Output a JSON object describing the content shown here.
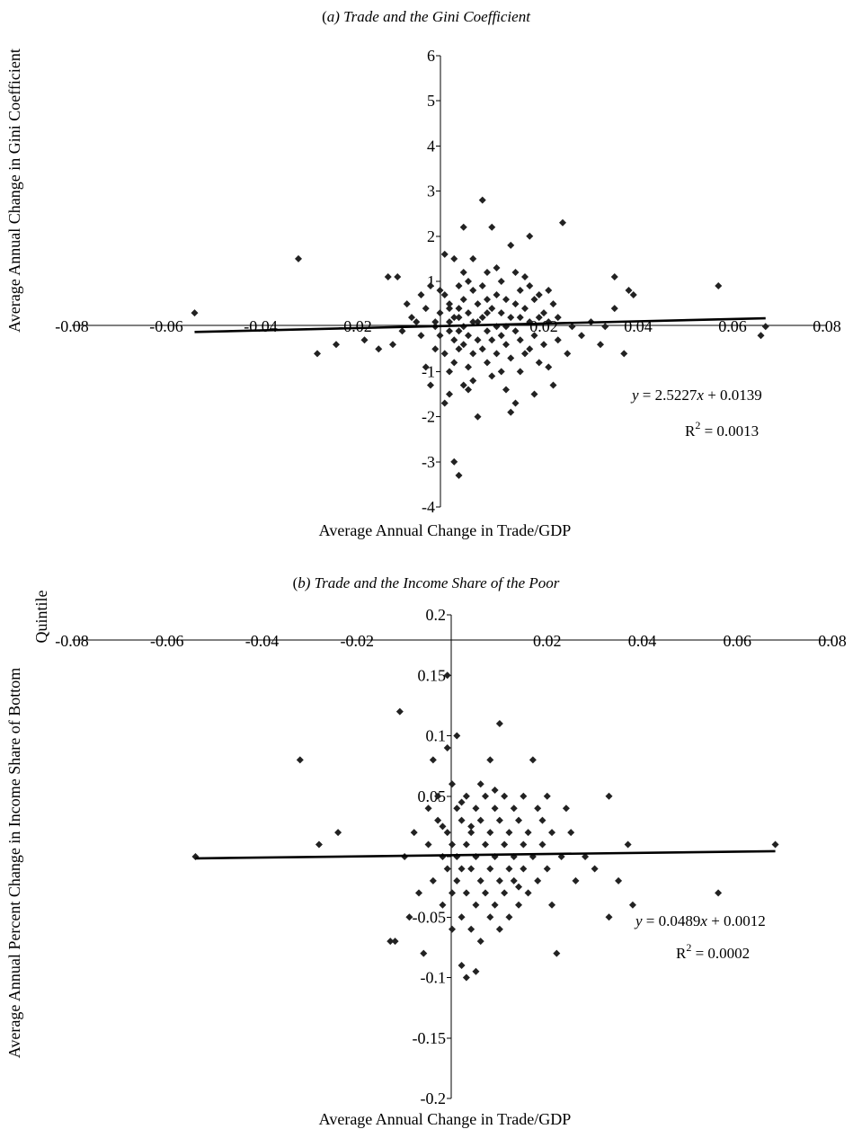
{
  "chart_data": [
    {
      "type": "scatter",
      "title_prefix": "(",
      "title_letter": "a",
      "title_rest": ") Trade and the Gini Coefficient",
      "xlabel": "Average Annual Change in Trade/GDP",
      "ylabel": "Average Annual Change in Gini Coefficient",
      "xlim": [
        -0.08,
        0.08
      ],
      "ylim": [
        -4,
        6
      ],
      "x_ticks": [
        "-0.08",
        "-0.06",
        "-0.04",
        "-0.02",
        "0",
        "0.02",
        "0.04",
        "0.06",
        "0.08"
      ],
      "y_ticks": [
        "-4",
        "-3",
        "-2",
        "-1",
        "0",
        "1",
        "2",
        "3",
        "4",
        "5",
        "6"
      ],
      "grid": false,
      "trendline": {
        "slope": 2.5227,
        "intercept": 0.0139,
        "x_range": [
          -0.054,
          0.067
        ]
      },
      "equation": {
        "lhs": "y",
        "rhs_num": " = 2.5227",
        "rhs_var": "x",
        "rhs_tail": " + 0.0139"
      },
      "r2": {
        "base": "R",
        "sup": "2",
        "value": " = 0.0013"
      },
      "points": [
        [
          -0.054,
          0.3
        ],
        [
          -0.032,
          1.5
        ],
        [
          -0.028,
          -0.6
        ],
        [
          -0.024,
          -0.4
        ],
        [
          -0.018,
          -0.3
        ],
        [
          -0.013,
          1.1
        ],
        [
          -0.011,
          1.1
        ],
        [
          -0.015,
          -0.5
        ],
        [
          -0.012,
          -0.4
        ],
        [
          -0.01,
          -0.1
        ],
        [
          -0.009,
          0.5
        ],
        [
          -0.008,
          0.2
        ],
        [
          -0.007,
          0.1
        ],
        [
          -0.006,
          0.7
        ],
        [
          -0.005,
          0.4
        ],
        [
          -0.004,
          0.9
        ],
        [
          -0.006,
          -0.2
        ],
        [
          -0.005,
          -0.9
        ],
        [
          -0.004,
          -1.3
        ],
        [
          -0.003,
          -0.5
        ],
        [
          -0.003,
          0.0
        ],
        [
          -0.002,
          0.3
        ],
        [
          -0.002,
          -0.2
        ],
        [
          -0.001,
          1.6
        ],
        [
          -0.001,
          0.7
        ],
        [
          -0.001,
          -0.6
        ],
        [
          -0.001,
          -1.7
        ],
        [
          0.0,
          0.1
        ],
        [
          0.0,
          -0.1
        ],
        [
          0.0,
          0.5
        ],
        [
          0.0,
          -1.0
        ],
        [
          0.0,
          -1.5
        ],
        [
          0.001,
          1.5
        ],
        [
          0.001,
          0.2
        ],
        [
          0.001,
          -0.3
        ],
        [
          0.001,
          -0.8
        ],
        [
          0.001,
          -3.0
        ],
        [
          0.002,
          -3.3
        ],
        [
          0.002,
          0.9
        ],
        [
          0.002,
          0.4
        ],
        [
          0.002,
          -0.1
        ],
        [
          0.002,
          -0.5
        ],
        [
          0.003,
          2.2
        ],
        [
          0.003,
          1.2
        ],
        [
          0.003,
          0.6
        ],
        [
          0.003,
          0.0
        ],
        [
          0.003,
          -0.4
        ],
        [
          0.003,
          -1.3
        ],
        [
          0.004,
          1.0
        ],
        [
          0.004,
          0.3
        ],
        [
          0.004,
          -0.2
        ],
        [
          0.004,
          -0.9
        ],
        [
          0.005,
          1.5
        ],
        [
          0.005,
          0.8
        ],
        [
          0.005,
          0.1
        ],
        [
          0.005,
          -0.6
        ],
        [
          0.005,
          -1.2
        ],
        [
          0.006,
          0.5
        ],
        [
          0.006,
          -0.3
        ],
        [
          0.006,
          -2.0
        ],
        [
          0.007,
          2.8
        ],
        [
          0.007,
          0.9
        ],
        [
          0.007,
          0.2
        ],
        [
          0.007,
          -0.5
        ],
        [
          0.008,
          1.2
        ],
        [
          0.008,
          0.6
        ],
        [
          0.008,
          -0.1
        ],
        [
          0.008,
          -0.8
        ],
        [
          0.009,
          2.2
        ],
        [
          0.009,
          0.4
        ],
        [
          0.009,
          -0.3
        ],
        [
          0.009,
          -1.1
        ],
        [
          0.01,
          0.7
        ],
        [
          0.01,
          0.0
        ],
        [
          0.01,
          -0.6
        ],
        [
          0.011,
          1.0
        ],
        [
          0.011,
          0.3
        ],
        [
          0.011,
          -0.2
        ],
        [
          0.011,
          -1.0
        ],
        [
          0.012,
          0.6
        ],
        [
          0.012,
          -0.4
        ],
        [
          0.012,
          -1.4
        ],
        [
          0.013,
          1.8
        ],
        [
          0.013,
          0.2
        ],
        [
          0.013,
          -0.7
        ],
        [
          0.013,
          -1.9
        ],
        [
          0.014,
          1.2
        ],
        [
          0.014,
          0.5
        ],
        [
          0.014,
          -0.1
        ],
        [
          0.014,
          -1.7
        ],
        [
          0.015,
          0.8
        ],
        [
          0.015,
          -0.3
        ],
        [
          0.015,
          -1.0
        ],
        [
          0.016,
          0.4
        ],
        [
          0.016,
          -0.6
        ],
        [
          0.017,
          2.0
        ],
        [
          0.017,
          0.9
        ],
        [
          0.017,
          0.1
        ],
        [
          0.017,
          -0.5
        ],
        [
          0.018,
          0.6
        ],
        [
          0.018,
          -0.2
        ],
        [
          0.018,
          -1.5
        ],
        [
          0.019,
          0.7
        ],
        [
          0.019,
          -0.8
        ],
        [
          0.02,
          0.3
        ],
        [
          0.02,
          -0.4
        ],
        [
          0.021,
          0.8
        ],
        [
          0.021,
          0.1
        ],
        [
          0.021,
          -0.9
        ],
        [
          0.022,
          -1.3
        ],
        [
          0.022,
          0.5
        ],
        [
          0.023,
          0.2
        ],
        [
          0.023,
          -0.3
        ],
        [
          0.024,
          2.3
        ],
        [
          0.025,
          -0.6
        ],
        [
          0.026,
          0.0
        ],
        [
          0.028,
          -0.2
        ],
        [
          0.03,
          0.1
        ],
        [
          0.032,
          -0.4
        ],
        [
          0.033,
          0.0
        ],
        [
          0.035,
          0.4
        ],
        [
          0.035,
          1.1
        ],
        [
          0.037,
          -0.6
        ],
        [
          0.038,
          0.8
        ],
        [
          0.039,
          0.7
        ],
        [
          0.057,
          0.9
        ],
        [
          0.067,
          0.0
        ],
        [
          0.066,
          -0.2
        ],
        [
          -0.002,
          0.8
        ],
        [
          0.004,
          -1.4
        ],
        [
          0.01,
          1.3
        ],
        [
          0.012,
          0.0
        ],
        [
          0.016,
          1.1
        ],
        [
          0.019,
          0.2
        ],
        [
          0.006,
          0.1
        ],
        [
          0.002,
          0.2
        ],
        [
          -0.003,
          0.1
        ],
        [
          0.0,
          0.4
        ],
        [
          0.008,
          0.3
        ],
        [
          0.015,
          0.2
        ]
      ]
    },
    {
      "type": "scatter",
      "title_prefix": "(",
      "title_letter": "b",
      "title_rest": ") Trade and the Income Share of the Poor",
      "xlabel": "Average Annual Change in Trade/GDP",
      "ylabel_line1": "Average Annual Percent Change in Income Share of Bottom",
      "ylabel_line2": "Quintile",
      "xlim": [
        -0.08,
        0.08
      ],
      "ylim": [
        -0.2,
        0.2
      ],
      "x_ticks": [
        "-0.08",
        "-0.06",
        "-0.04",
        "-0.02",
        "0",
        "0.02",
        "0.04",
        "0.06",
        "0.08"
      ],
      "y_ticks": [
        "-0.2",
        "-0.15",
        "-0.1",
        "-0.05",
        "0",
        "0.05",
        "0.1",
        "0.15",
        "0.2"
      ],
      "grid": false,
      "trendline": {
        "slope": 0.0489,
        "intercept": 0.0012,
        "x_range": [
          -0.054,
          0.068
        ]
      },
      "equation": {
        "lhs": "y",
        "rhs_num": " = 0.0489",
        "rhs_var": "x",
        "rhs_tail": " + 0.0012"
      },
      "r2": {
        "base": "R",
        "sup": "2",
        "value": " = 0.0002"
      },
      "points": [
        [
          -0.054,
          0.0
        ],
        [
          -0.032,
          0.08
        ],
        [
          -0.028,
          0.01
        ],
        [
          -0.024,
          0.02
        ],
        [
          -0.011,
          0.12
        ],
        [
          -0.013,
          -0.07
        ],
        [
          -0.012,
          -0.07
        ],
        [
          -0.01,
          0.0
        ],
        [
          -0.009,
          -0.05
        ],
        [
          -0.008,
          0.02
        ],
        [
          -0.007,
          -0.03
        ],
        [
          -0.006,
          -0.08
        ],
        [
          -0.005,
          0.01
        ],
        [
          -0.004,
          0.08
        ],
        [
          -0.004,
          -0.02
        ],
        [
          -0.003,
          0.05
        ],
        [
          -0.003,
          0.03
        ],
        [
          -0.002,
          0.0
        ],
        [
          -0.002,
          -0.04
        ],
        [
          -0.001,
          0.15
        ],
        [
          -0.001,
          0.09
        ],
        [
          -0.001,
          0.02
        ],
        [
          -0.001,
          -0.01
        ],
        [
          0.0,
          0.06
        ],
        [
          0.0,
          0.01
        ],
        [
          0.0,
          -0.03
        ],
        [
          0.0,
          -0.06
        ],
        [
          0.001,
          0.1
        ],
        [
          0.001,
          0.04
        ],
        [
          0.001,
          0.0
        ],
        [
          0.001,
          -0.02
        ],
        [
          0.002,
          0.03
        ],
        [
          0.002,
          -0.01
        ],
        [
          0.002,
          -0.05
        ],
        [
          0.002,
          -0.09
        ],
        [
          0.003,
          0.05
        ],
        [
          0.003,
          0.01
        ],
        [
          0.003,
          -0.03
        ],
        [
          0.003,
          -0.1
        ],
        [
          0.004,
          0.02
        ],
        [
          0.004,
          -0.01
        ],
        [
          0.004,
          -0.06
        ],
        [
          0.005,
          0.04
        ],
        [
          0.005,
          0.0
        ],
        [
          0.005,
          -0.04
        ],
        [
          0.005,
          -0.095
        ],
        [
          0.006,
          0.03
        ],
        [
          0.006,
          -0.02
        ],
        [
          0.006,
          -0.07
        ],
        [
          0.007,
          0.05
        ],
        [
          0.007,
          0.01
        ],
        [
          0.007,
          -0.03
        ],
        [
          0.008,
          0.08
        ],
        [
          0.008,
          0.02
        ],
        [
          0.008,
          -0.01
        ],
        [
          0.008,
          -0.05
        ],
        [
          0.009,
          0.04
        ],
        [
          0.009,
          0.0
        ],
        [
          0.009,
          -0.04
        ],
        [
          0.01,
          0.11
        ],
        [
          0.01,
          0.03
        ],
        [
          0.01,
          -0.02
        ],
        [
          0.01,
          -0.06
        ],
        [
          0.011,
          0.05
        ],
        [
          0.011,
          0.01
        ],
        [
          0.011,
          -0.03
        ],
        [
          0.012,
          0.02
        ],
        [
          0.012,
          -0.01
        ],
        [
          0.012,
          -0.05
        ],
        [
          0.013,
          0.04
        ],
        [
          0.013,
          0.0
        ],
        [
          0.013,
          -0.02
        ],
        [
          0.014,
          0.03
        ],
        [
          0.014,
          -0.04
        ],
        [
          0.015,
          0.05
        ],
        [
          0.015,
          0.01
        ],
        [
          0.015,
          -0.01
        ],
        [
          0.016,
          0.02
        ],
        [
          0.016,
          -0.03
        ],
        [
          0.017,
          0.08
        ],
        [
          0.017,
          0.0
        ],
        [
          0.018,
          0.04
        ],
        [
          0.018,
          -0.02
        ],
        [
          0.019,
          0.03
        ],
        [
          0.019,
          0.01
        ],
        [
          0.02,
          0.05
        ],
        [
          0.02,
          -0.01
        ],
        [
          0.021,
          0.02
        ],
        [
          0.021,
          -0.04
        ],
        [
          0.022,
          -0.08
        ],
        [
          0.023,
          0.0
        ],
        [
          0.024,
          0.04
        ],
        [
          0.025,
          0.02
        ],
        [
          0.026,
          -0.02
        ],
        [
          0.028,
          0.0
        ],
        [
          0.03,
          -0.01
        ],
        [
          0.033,
          0.05
        ],
        [
          0.033,
          -0.05
        ],
        [
          0.035,
          -0.02
        ],
        [
          0.037,
          0.01
        ],
        [
          0.038,
          -0.04
        ],
        [
          0.056,
          -0.03
        ],
        [
          0.068,
          0.01
        ],
        [
          -0.005,
          0.04
        ],
        [
          0.006,
          0.06
        ],
        [
          0.009,
          0.055
        ],
        [
          0.014,
          -0.025
        ],
        [
          0.004,
          0.025
        ],
        [
          0.002,
          0.045
        ],
        [
          -0.002,
          0.025
        ]
      ]
    }
  ]
}
